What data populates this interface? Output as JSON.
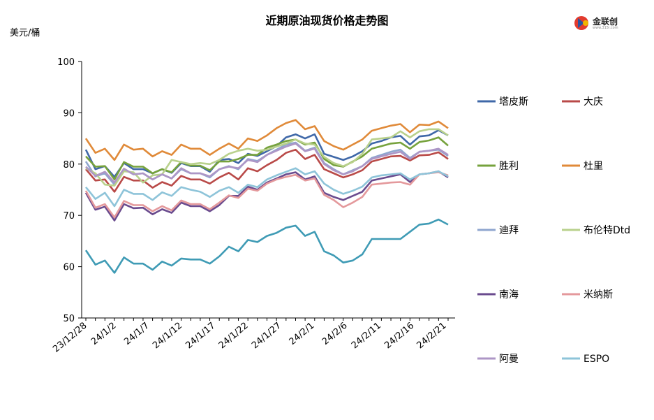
{
  "chart_data": {
    "type": "line",
    "title": "近期原油现货价格走势图",
    "ylabel": "美元/桶",
    "ylim": [
      50,
      100
    ],
    "yticks": [
      50,
      60,
      70,
      80,
      90,
      100
    ],
    "grid": false,
    "legend_position": "right",
    "xtick_labels": [
      "23/12/28",
      "24/1/2",
      "24/1/7",
      "24/1/12",
      "24/1/17",
      "24/1/22",
      "24/1/27",
      "24/2/1",
      "24/2/6",
      "24/2/11",
      "24/2/16",
      "24/2/21"
    ],
    "x": [
      "23/12/28",
      "23/12/29",
      "24/1/2",
      "24/1/3",
      "24/1/4",
      "24/1/5",
      "24/1/8",
      "24/1/9",
      "24/1/10",
      "24/1/11",
      "24/1/12",
      "24/1/15",
      "24/1/16",
      "24/1/17",
      "24/1/18",
      "24/1/19",
      "24/1/22",
      "24/1/23",
      "24/1/24",
      "24/1/25",
      "24/1/26",
      "24/1/29",
      "24/1/30",
      "24/1/31",
      "24/2/1",
      "24/2/2",
      "24/2/5",
      "24/2/6",
      "24/2/7",
      "24/2/8",
      "24/2/9",
      "24/2/12",
      "24/2/13",
      "24/2/14",
      "24/2/15",
      "24/2/16",
      "24/2/19",
      "24/2/20",
      "24/2/21"
    ],
    "series": [
      {
        "name": "塔皮斯",
        "color": "#3f68a8",
        "values": [
          82.8,
          79.0,
          79.6,
          77.5,
          80.2,
          79.0,
          79.0,
          78.2,
          79.0,
          78.3,
          80.2,
          79.6,
          79.6,
          78.5,
          80.8,
          81.0,
          80.2,
          82.0,
          81.6,
          82.5,
          83.5,
          85.2,
          85.8,
          85.0,
          85.8,
          82.0,
          81.4,
          80.8,
          81.5,
          82.5,
          84.0,
          84.5,
          85.2,
          85.5,
          83.8,
          85.4,
          85.6,
          86.6,
          85.6
        ]
      },
      {
        "name": "大庆",
        "color": "#b94a48",
        "values": [
          79.0,
          76.8,
          77.0,
          74.6,
          77.5,
          76.8,
          76.8,
          75.4,
          76.5,
          75.8,
          77.7,
          77.0,
          77.0,
          76.2,
          77.4,
          78.3,
          77.0,
          79.2,
          78.6,
          79.8,
          80.8,
          82.2,
          82.8,
          81.0,
          81.8,
          79.0,
          78.2,
          77.4,
          78.0,
          78.8,
          80.5,
          81.0,
          81.5,
          81.6,
          80.7,
          81.7,
          81.8,
          82.3,
          81.0
        ]
      },
      {
        "name": "胜利",
        "color": "#76a23c",
        "values": [
          81.5,
          79.5,
          79.6,
          77.0,
          80.4,
          79.5,
          79.5,
          78.2,
          79.0,
          78.4,
          80.4,
          79.7,
          79.7,
          78.8,
          80.5,
          80.5,
          81.0,
          81.8,
          81.8,
          83.2,
          83.8,
          84.5,
          84.8,
          83.8,
          84.2,
          81.0,
          79.8,
          79.5,
          80.5,
          81.5,
          83.0,
          83.5,
          84.0,
          84.2,
          83.0,
          84.3,
          84.6,
          85.2,
          83.6
        ]
      },
      {
        "name": "杜里",
        "color": "#e08a39",
        "values": [
          85.0,
          82.2,
          83.0,
          80.8,
          83.8,
          82.8,
          83.0,
          81.5,
          82.5,
          81.8,
          83.8,
          83.0,
          83.0,
          81.8,
          83.0,
          84.0,
          83.0,
          85.0,
          84.5,
          85.6,
          87.0,
          88.0,
          88.6,
          86.8,
          87.4,
          84.5,
          83.5,
          82.8,
          83.8,
          84.8,
          86.5,
          87.0,
          87.5,
          87.8,
          86.2,
          87.7,
          87.6,
          88.3,
          87.0
        ]
      },
      {
        "name": "迪拜",
        "color": "#8fa6cf",
        "values": [
          80.5,
          77.6,
          78.2,
          76.0,
          79.0,
          78.0,
          78.2,
          77.0,
          78.0,
          77.2,
          79.0,
          78.2,
          78.2,
          77.4,
          79.0,
          79.6,
          79.0,
          81.0,
          80.6,
          81.8,
          82.8,
          83.8,
          84.2,
          82.6,
          83.2,
          80.2,
          79.0,
          78.0,
          78.8,
          79.6,
          81.2,
          81.8,
          82.4,
          82.8,
          81.2,
          82.4,
          82.6,
          82.8,
          81.6
        ]
      },
      {
        "name": "布伦特Dtd",
        "color": "#b9d18c",
        "values": [
          79.2,
          78.2,
          76.0,
          75.8,
          78.6,
          78.4,
          76.4,
          77.8,
          78.0,
          80.8,
          80.4,
          80.0,
          80.2,
          80.0,
          80.8,
          82.0,
          82.6,
          83.0,
          82.6,
          82.8,
          83.4,
          84.0,
          84.8,
          84.0,
          83.8,
          81.4,
          80.2,
          79.6,
          80.4,
          82.0,
          84.8,
          85.0,
          85.2,
          86.4,
          85.2,
          86.4,
          86.8,
          86.8,
          85.6
        ]
      },
      {
        "name": "南海",
        "color": "#6a4b8e",
        "values": [
          74.4,
          71.1,
          71.7,
          69.0,
          72.2,
          71.4,
          71.5,
          70.2,
          71.2,
          70.5,
          72.5,
          71.8,
          71.8,
          70.8,
          72.0,
          73.8,
          73.8,
          75.6,
          75.0,
          76.4,
          77.2,
          78.0,
          78.4,
          77.0,
          77.6,
          74.4,
          73.6,
          73.0,
          73.8,
          74.6,
          76.8,
          77.2,
          77.6,
          78.0,
          76.5,
          78.0,
          78.2,
          78.6,
          77.4
        ]
      },
      {
        "name": "米纳斯",
        "color": "#e4999c",
        "values": [
          74.8,
          71.5,
          72.2,
          69.6,
          72.8,
          72.0,
          72.0,
          70.8,
          71.8,
          71.0,
          72.9,
          72.2,
          72.2,
          71.2,
          72.5,
          73.9,
          73.4,
          75.2,
          74.8,
          76.2,
          77.0,
          77.5,
          77.9,
          76.8,
          77.2,
          74.0,
          73.0,
          71.6,
          72.5,
          73.6,
          76.0,
          76.2,
          76.4,
          76.5,
          76.0,
          78.0,
          78.2,
          78.4,
          77.8
        ]
      },
      {
        "name": "阿曼",
        "color": "#ad96c6",
        "values": [
          79.5,
          77.7,
          78.5,
          76.4,
          79.1,
          78.0,
          78.2,
          77.0,
          78.0,
          77.2,
          79.2,
          78.2,
          78.2,
          77.6,
          79.0,
          79.5,
          79.2,
          80.8,
          80.4,
          81.8,
          82.6,
          83.4,
          84.0,
          82.5,
          83.0,
          80.0,
          78.8,
          78.0,
          78.6,
          79.6,
          81.0,
          81.5,
          82.0,
          82.4,
          81.0,
          82.4,
          82.6,
          83.0,
          81.8
        ]
      },
      {
        "name": "ESPO",
        "color": "#8ec4d9",
        "values": [
          75.5,
          73.2,
          74.4,
          71.8,
          75.0,
          74.2,
          74.2,
          73.0,
          74.5,
          73.8,
          75.5,
          75.0,
          74.6,
          73.6,
          74.8,
          75.5,
          74.4,
          76.0,
          75.5,
          77.0,
          77.8,
          78.5,
          79.2,
          78.0,
          78.6,
          76.2,
          75.0,
          74.2,
          74.8,
          75.6,
          77.4,
          77.8,
          78.0,
          78.2,
          77.0,
          78.0,
          78.2,
          78.6,
          77.6
        ]
      },
      {
        "name": "",
        "color": "#3f9bb5",
        "values": [
          63.2,
          60.4,
          61.2,
          58.8,
          61.8,
          60.6,
          60.6,
          59.4,
          61.0,
          60.2,
          61.6,
          61.4,
          61.4,
          60.6,
          62.0,
          63.9,
          63.0,
          65.2,
          64.8,
          66.0,
          66.6,
          67.6,
          68.0,
          66.0,
          66.8,
          63.0,
          62.2,
          60.8,
          61.2,
          62.4,
          65.4,
          65.4,
          65.4,
          65.4,
          66.8,
          68.2,
          68.4,
          69.2,
          68.2
        ]
      }
    ]
  }
}
